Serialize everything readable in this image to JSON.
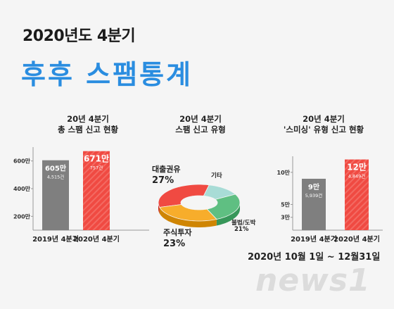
{
  "header": {
    "year_title": "2020년도 4분기",
    "main_title": "후후 스팸통계"
  },
  "footer": {
    "date_range": "2020년 10월 1일 ~ 12월31일",
    "logo": "news1"
  },
  "colors": {
    "gray_bar": "#7f7f7f",
    "red_bar": "#f04a42",
    "blue_title": "#2a8de0",
    "teal": "#a8dcd6",
    "green": "#5fbf82",
    "orange": "#f7ad2b",
    "red_slice": "#f04a42"
  },
  "chart_data": [
    {
      "type": "bar",
      "title_line1": "20년 4분기",
      "title_line2": "총 스팸 신고 현황",
      "categories": [
        "2019년 4분기",
        "2020년 4분기"
      ],
      "values": [
        605,
        671
      ],
      "value_labels": [
        "605만",
        "671만"
      ],
      "sub_labels": [
        "4,515건",
        "757건"
      ],
      "yticks": [
        "600만",
        "400만",
        "200만"
      ],
      "ytick_values": [
        600,
        400,
        200
      ],
      "ylim": [
        100,
        700
      ]
    },
    {
      "type": "pie",
      "title_line1": "20년 4분기",
      "title_line2": "스팸 신고 유형",
      "slices": [
        {
          "name": "대출권유",
          "value": 27,
          "label": "27%",
          "color": "#f04a42"
        },
        {
          "name": "기타",
          "value": 11,
          "label": "",
          "color": "#a8dcd6"
        },
        {
          "name": "불법/도박",
          "value": 21,
          "label": "21%",
          "color": "#5fbf82"
        },
        {
          "name": "주식투자",
          "value": 23,
          "label": "23%",
          "color": "#f7ad2b"
        }
      ]
    },
    {
      "type": "bar",
      "title_line1": "20년 4분기",
      "title_line2": "'스미싱' 유형 신고 현황",
      "categories": [
        "2019년 4분기",
        "2020년 4분기"
      ],
      "values": [
        9,
        12
      ],
      "value_labels": [
        "9만",
        "12만"
      ],
      "sub_labels": [
        "5,939건",
        "4,849건"
      ],
      "yticks": [
        "10만",
        "5만",
        "3만"
      ],
      "ytick_values": [
        10,
        5,
        3
      ],
      "ylim": [
        1,
        12.5
      ]
    }
  ]
}
